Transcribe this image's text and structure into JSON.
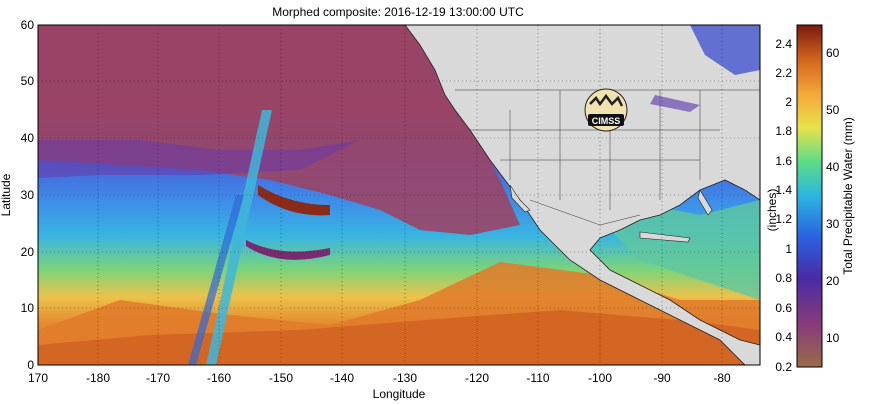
{
  "figure": {
    "title": "Morphed composite: 2016-12-19 13:00:00 UTC",
    "xlabel": "Longitude",
    "ylabel": "Latitude",
    "x_ticks": [
      "170",
      "-180",
      "-170",
      "-160",
      "-150",
      "-140",
      "-130",
      "-120",
      "-110",
      "-100",
      "-90",
      "-80"
    ],
    "y_ticks": [
      "0",
      "10",
      "20",
      "30",
      "40",
      "50",
      "60"
    ],
    "logo_text": "CIMSS"
  },
  "colorbar": {
    "label_right": "Total Precipitable Water (mm)",
    "label_left": "(inches)",
    "mm_ticks": [
      "10",
      "20",
      "30",
      "40",
      "50",
      "60"
    ],
    "inch_ticks": [
      "0.2",
      "0.4",
      "0.6",
      "0.8",
      "1",
      "1.2",
      "1.4",
      "1.6",
      "1.8",
      "2",
      "2.2",
      "2.4"
    ],
    "colors": [
      "#8b5a3c",
      "#7e2f6a",
      "#3b2aa8",
      "#2a6ee6",
      "#32c8d8",
      "#6ee07a",
      "#f0e650",
      "#f5a23a",
      "#d2641e",
      "#8a1e10"
    ]
  },
  "map_colors": {
    "land": "#d8d8d8",
    "dry_air": "#9b4a68",
    "moist_band": "#e07a2a"
  }
}
